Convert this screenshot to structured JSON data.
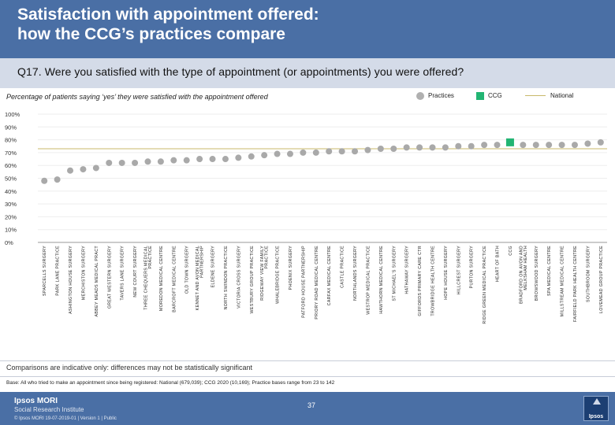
{
  "header": {
    "title_line1": "Satisfaction with appointment offered:",
    "title_line2": "how the CCG’s practices compare"
  },
  "question": "Q17. Were you satisfied with the type of appointment (or appointments) you were offered?",
  "subtitle": "Percentage of patients saying ‘yes’ they were satisfied with the appointment offered",
  "legend": {
    "practices": "Practices",
    "ccg": "CCG",
    "national": "National"
  },
  "colors": {
    "practice": "#a9a9a9",
    "ccg": "#22b573",
    "national": "#c8b86a",
    "header": "#4a6fa5"
  },
  "chart_data": {
    "type": "scatter",
    "title": "Percentage of patients saying ‘yes’ they were satisfied with the appointment offered",
    "ylabel": "",
    "xlabel": "",
    "ylim": [
      0,
      100
    ],
    "ytick_labels": [
      "0%",
      "10%",
      "20%",
      "30%",
      "40%",
      "50%",
      "60%",
      "70%",
      "80%",
      "90%",
      "100%"
    ],
    "national_value": 73,
    "categories": [
      "SPARCELLS SURGERY",
      "PARK LANE PRACTICE",
      "ASHINGTON HOUSE SURGERY",
      "MERCHISTON SURGERY",
      "ABBEY MEADS MEDICAL PRACT",
      "GREAT WESTERN SURGERY",
      "TAVERS LANE SURGERY",
      "NEW COURT SURGERY",
      "THREE CHEQUERS MEDICAL PRACTICE",
      "MOREDON MEDICAL CENTRE",
      "BARCROFT MEDICAL CENTRE",
      "OLD TOWN SURGERY",
      "KENNET AND AVON MEDICAL PARTNERSHIP",
      "ELDENE SURGERY",
      "NORTH SWINDON PRACTICE",
      "VICTORIA CROSS SURGERY",
      "WESTBURY GROUP PRACTICE",
      "RIDGEWAY VIEW FAMILY PRACTICE",
      "WHALEBRIDGE PRACTICE",
      "PHOENIX SURGERY",
      "PATFORD HOUSE PARTNERSHIP",
      "PRIORY ROAD MEDICAL CENTRE",
      "CARFAX MEDICAL CENTRE",
      "CASTLE PRACTICE",
      "NORTHLANDS SURGERY",
      "WESTROP MEDICAL PRACTICE",
      "HAWTHORN MEDICAL CENTRE",
      "ST MICHAEL'S SURGERY",
      "HATHAWAY SURGERY",
      "GIFFORDS PRIMARY CARE CTR",
      "TROWBRIDGE HEALTH CENTRE",
      "HOPE HOUSE SURGERY",
      "HILLCREST SURGERY",
      "PURTON SURGERY",
      "RIDGE GREEN MEDICAL PRACTICE",
      "HEART OF BATH",
      "CCG",
      "BRADFORD ON AVON AND MELKSHAM HEALTH",
      "BROWSWOOD SURGERY",
      "SPA MEDICAL CENTRE",
      "MILLSTREAM MEDICAL CENTRE",
      "FAIRFIELD PARK HEALTH CENTRE",
      "SOUTHBROOM SURGERY",
      "LOVEMEAD GROUP PRACTICE"
    ],
    "values": [
      48,
      49,
      56,
      57,
      58,
      62,
      62,
      62,
      63,
      63,
      64,
      64,
      65,
      65,
      65,
      66,
      67,
      68,
      69,
      69,
      70,
      70,
      71,
      71,
      71,
      72,
      73,
      73,
      74,
      74,
      74,
      74,
      75,
      75,
      76,
      76,
      78,
      76,
      76,
      76,
      76,
      76,
      77,
      78
    ],
    "ccg_index": 36
  },
  "note": "Comparisons are indicative only: differences may not be statistically significant",
  "base": "Base: All who tried to make an appointment since being registered: National (679,039); CCG 2020 (10,169); Practice bases range from 23 to 142",
  "footer": {
    "brand": "Ipsos MORI",
    "institute": "Social Research Institute",
    "copyright": "© Ipsos MORI     19-07-2019-01 | Version 1 | Public",
    "page": "37",
    "logo": "Ipsos"
  }
}
